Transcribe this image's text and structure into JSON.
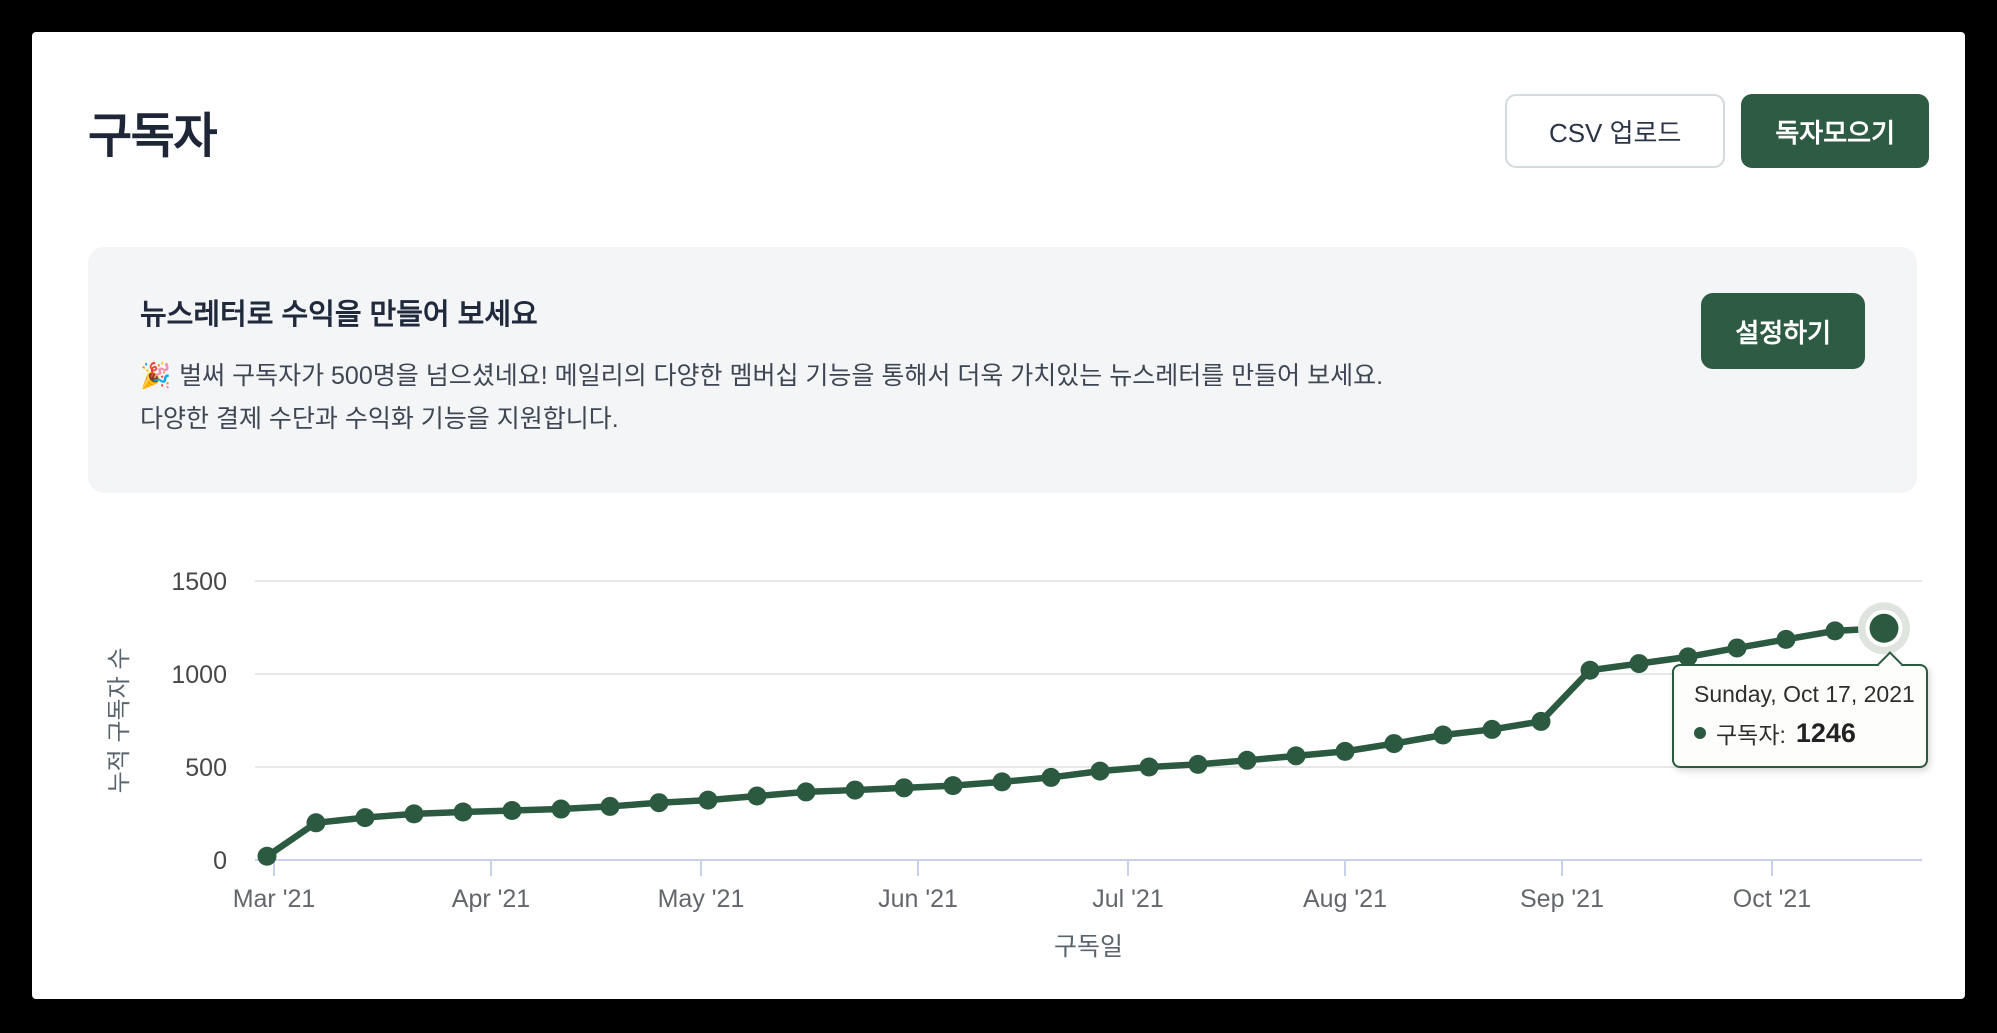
{
  "header": {
    "title": "구독자",
    "csv_button": "CSV 업로드",
    "collect_button": "독자모으기"
  },
  "banner": {
    "title": "뉴스레터로 수익을 만들어 보세요",
    "emoji": "🎉",
    "body": "벌써 구독자가 500명을 넘으셨네요! 메일리의 다양한 멤버십 기능을 통해서 더욱 가치있는 뉴스레터를 만들어 보세요. 다양한 결제 수단과 수익화 기능을 지원합니다.",
    "setup_button": "설정하기"
  },
  "chart_data": {
    "type": "line",
    "title": "",
    "xlabel": "구독일",
    "ylabel": "누적 구독자 수",
    "ylim": [
      0,
      1500
    ],
    "yticks": [
      0,
      500,
      1000,
      1500
    ],
    "grid": true,
    "legend": false,
    "xticks": [
      {
        "label": "Mar '21",
        "date": "2021-03-01"
      },
      {
        "label": "Apr '21",
        "date": "2021-04-01"
      },
      {
        "label": "May '21",
        "date": "2021-05-01"
      },
      {
        "label": "Jun '21",
        "date": "2021-06-01"
      },
      {
        "label": "Jul '21",
        "date": "2021-07-01"
      },
      {
        "label": "Aug '21",
        "date": "2021-08-01"
      },
      {
        "label": "Sep '21",
        "date": "2021-09-01"
      },
      {
        "label": "Oct '21",
        "date": "2021-10-01"
      }
    ],
    "series": [
      {
        "name": "구독자",
        "color": "#2b5a40",
        "dates": [
          "2021-02-28",
          "2021-03-07",
          "2021-03-14",
          "2021-03-21",
          "2021-03-28",
          "2021-04-04",
          "2021-04-11",
          "2021-04-18",
          "2021-04-25",
          "2021-05-02",
          "2021-05-09",
          "2021-05-16",
          "2021-05-23",
          "2021-05-30",
          "2021-06-06",
          "2021-06-13",
          "2021-06-20",
          "2021-06-27",
          "2021-07-04",
          "2021-07-11",
          "2021-07-18",
          "2021-07-25",
          "2021-08-01",
          "2021-08-08",
          "2021-08-15",
          "2021-08-22",
          "2021-08-29",
          "2021-09-05",
          "2021-09-12",
          "2021-09-19",
          "2021-09-26",
          "2021-10-03",
          "2021-10-10",
          "2021-10-17"
        ],
        "values": [
          20,
          200,
          228,
          248,
          258,
          266,
          274,
          288,
          308,
          322,
          344,
          366,
          376,
          388,
          400,
          420,
          444,
          478,
          500,
          514,
          536,
          560,
          584,
          626,
          672,
          702,
          745,
          1020,
          1056,
          1092,
          1140,
          1186,
          1232,
          1246
        ]
      }
    ],
    "highlight_index": 33
  },
  "tooltip": {
    "date_label": "Sunday, Oct 17, 2021",
    "series_label": "구독자:",
    "value": "1246"
  },
  "colors": {
    "accent_green": "#2d5b44",
    "line_green": "#2b5a40",
    "axis_blue": "#c7d2ea",
    "grid_gray": "#e8e8e8",
    "halo_ring": "#dfe5de",
    "tick_text": "#63676c",
    "ytick_text": "#474747",
    "axis_title_text": "#5a646e"
  }
}
